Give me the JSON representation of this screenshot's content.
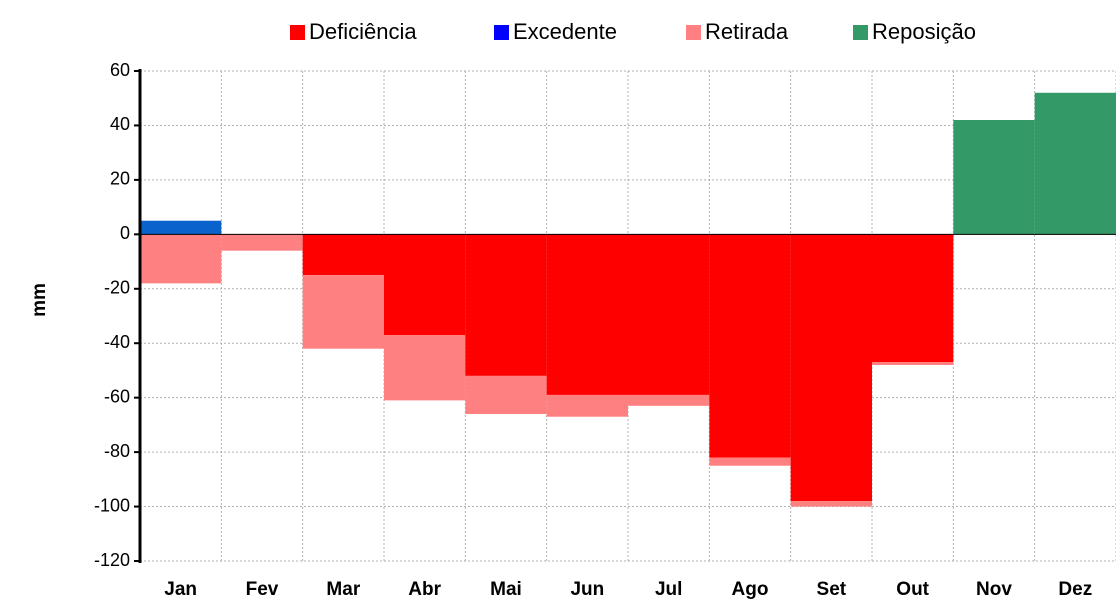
{
  "chart_data": {
    "type": "bar",
    "stacked": true,
    "categories": [
      "Jan",
      "Fev",
      "Mar",
      "Abr",
      "Mai",
      "Jun",
      "Jul",
      "Ago",
      "Set",
      "Out",
      "Nov",
      "Dez"
    ],
    "series": [
      {
        "name": "Deficiência",
        "color": "#ff0000",
        "values": [
          0,
          0,
          -15,
          -37,
          -52,
          -59,
          -59,
          -82,
          -98,
          -47,
          0,
          0
        ]
      },
      {
        "name": "Excedente",
        "color": "#0a62cc",
        "legend_color": "#0000ff",
        "values": [
          5,
          0,
          0,
          0,
          0,
          0,
          0,
          0,
          0,
          0,
          0,
          0
        ]
      },
      {
        "name": "Retirada",
        "color": "#ff8080",
        "values": [
          -18,
          -6,
          -27,
          -24,
          -14,
          -8,
          -4,
          -3,
          -2,
          -1,
          0,
          0
        ]
      },
      {
        "name": "Reposição",
        "color": "#339966",
        "values": [
          0,
          0,
          0,
          0,
          0,
          0,
          0,
          0,
          0,
          0,
          42,
          52
        ]
      }
    ],
    "y_label": "mm",
    "ylim": [
      -120,
      60
    ],
    "yticks": [
      -120,
      -100,
      -80,
      -60,
      -40,
      -20,
      0,
      20,
      40,
      60
    ],
    "grid": true,
    "legend": "top"
  }
}
